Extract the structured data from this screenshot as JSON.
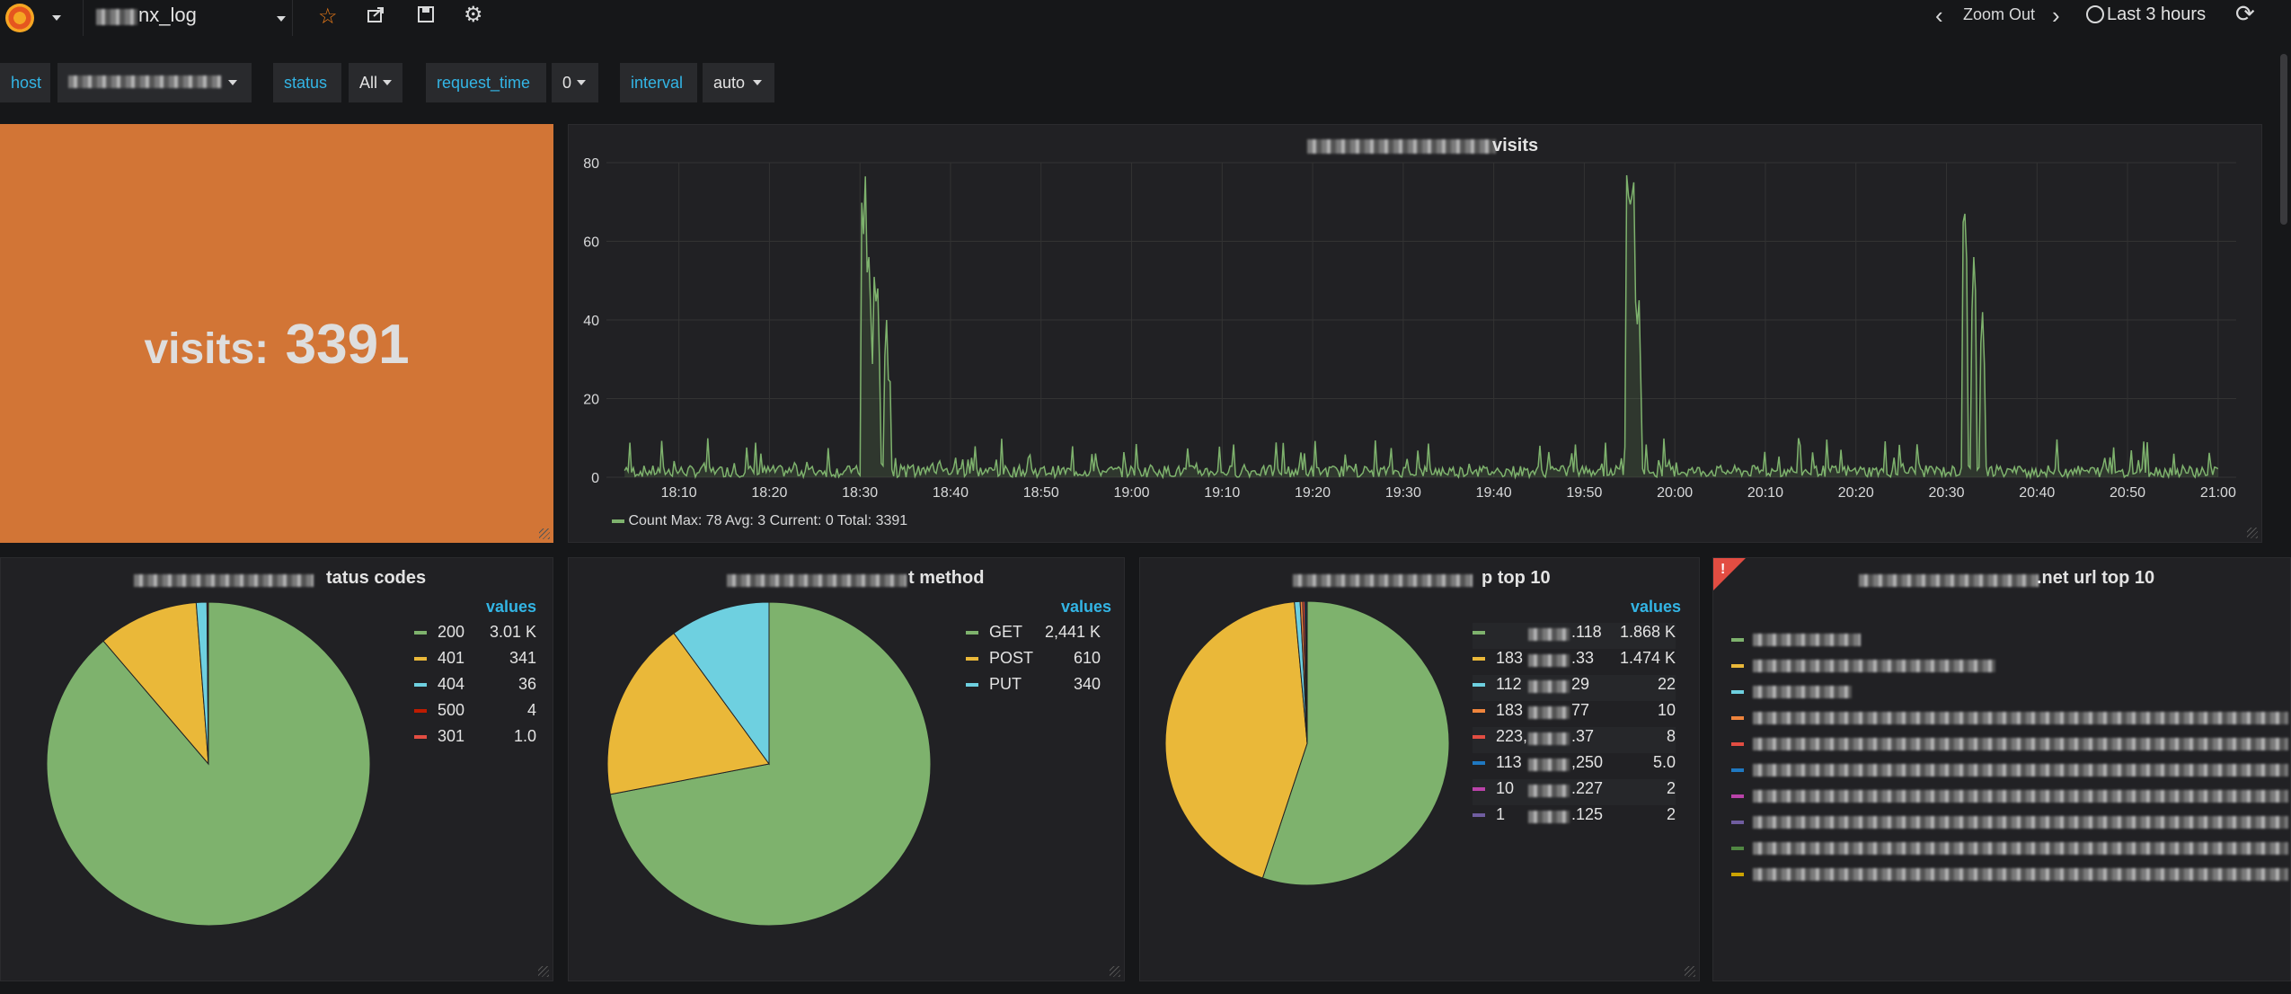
{
  "navbar": {
    "dashboard_title": "nx_log",
    "zoom_label": "Zoom Out",
    "time_range": "Last 3 hours"
  },
  "variables": [
    {
      "label": "host",
      "value": ""
    },
    {
      "label": "status",
      "value": "All"
    },
    {
      "label": "request_time",
      "value": "0"
    },
    {
      "label": "interval",
      "value": "auto"
    }
  ],
  "singlestat": {
    "prefix": "visits:",
    "value": "3391",
    "background": "#d27536"
  },
  "visits_panel": {
    "title": "visits",
    "legend": {
      "series": "Count",
      "stats": "Max: 78  Avg: 3  Current: 0  Total: 3391"
    }
  },
  "chart_data": {
    "type": "line",
    "title": "visits",
    "x_ticks": [
      "18:10",
      "18:20",
      "18:30",
      "18:40",
      "18:50",
      "19:00",
      "19:10",
      "19:20",
      "19:30",
      "19:40",
      "19:50",
      "20:00",
      "20:10",
      "20:20",
      "20:30",
      "20:40",
      "20:50",
      "21:00"
    ],
    "y_ticks": [
      0,
      20,
      40,
      60,
      80
    ],
    "ylim": [
      0,
      80
    ],
    "grid": true,
    "series": [
      {
        "name": "Count",
        "color": "#7eb26d",
        "peaks": [
          {
            "t": "18:30.5",
            "v": 78
          },
          {
            "t": "18:31",
            "v": 56
          },
          {
            "t": "18:31.5",
            "v": 53
          },
          {
            "t": "18:32",
            "v": 48
          },
          {
            "t": "18:33",
            "v": 40
          },
          {
            "t": "19:55",
            "v": 78
          },
          {
            "t": "19:55.5",
            "v": 75
          },
          {
            "t": "19:56",
            "v": 45
          },
          {
            "t": "20:32",
            "v": 67
          },
          {
            "t": "20:33",
            "v": 56
          },
          {
            "t": "20:34",
            "v": 42
          }
        ],
        "baseline_max": 10
      }
    ]
  },
  "status_panel": {
    "title": "tatus codes",
    "values_header": "values",
    "items": [
      {
        "name": "200",
        "value": "3.01 K",
        "raw": 3010,
        "color": "#7eb26d"
      },
      {
        "name": "401",
        "value": "341",
        "raw": 341,
        "color": "#eab839"
      },
      {
        "name": "404",
        "value": "36",
        "raw": 36,
        "color": "#6ed0e0"
      },
      {
        "name": "500",
        "value": "4",
        "raw": 4,
        "color": "#bf1b00"
      },
      {
        "name": "301",
        "value": "1.0",
        "raw": 1,
        "color": "#e24d42"
      }
    ]
  },
  "method_panel": {
    "title": "t method",
    "values_header": "values",
    "items": [
      {
        "name": "GET",
        "value": "2,441 K",
        "raw": 2441,
        "color": "#7eb26d"
      },
      {
        "name": "POST",
        "value": "610",
        "raw": 610,
        "color": "#eab839"
      },
      {
        "name": "PUT",
        "value": "340",
        "raw": 340,
        "color": "#6ed0e0"
      }
    ]
  },
  "ip_panel": {
    "title": "p top 10",
    "values_header": "values",
    "items": [
      {
        "name": ".118",
        "value": "1.868 K",
        "raw": 1868,
        "color": "#7eb26d"
      },
      {
        "name": "183",
        "value": "1.474 K",
        "raw": 1474,
        "color": "#eab839"
      },
      {
        "name": "112",
        "value": "22",
        "raw": 22,
        "color": "#6ed0e0"
      },
      {
        "name": "183",
        "value": "10",
        "raw": 10,
        "color": "#ef843c"
      },
      {
        "name": "223",
        "value": "8",
        "raw": 8,
        "color": "#e24d42"
      },
      {
        "name": "113",
        "value": "5.0",
        "raw": 5,
        "color": "#1f78c1"
      },
      {
        "name": "10",
        "value": "2",
        "raw": 2,
        "color": "#ba43a9"
      },
      {
        "name": "1",
        "value": "2",
        "raw": 2,
        "color": "#705da0"
      }
    ],
    "name_suffixes": [
      ".118",
      ".33",
      "29",
      "77",
      ".37",
      ",250",
      ".227",
      ".125"
    ],
    "name_prefixes": [
      "",
      "183",
      "112",
      "183",
      "223,",
      "113",
      "10",
      "1"
    ]
  },
  "url_panel": {
    "title": ".net url top 10",
    "colors": [
      "#7eb26d",
      "#eab839",
      "#6ed0e0",
      "#ef843c",
      "#e24d42",
      "#1f78c1",
      "#ba43a9",
      "#705da0",
      "#508642",
      "#cca300"
    ]
  }
}
